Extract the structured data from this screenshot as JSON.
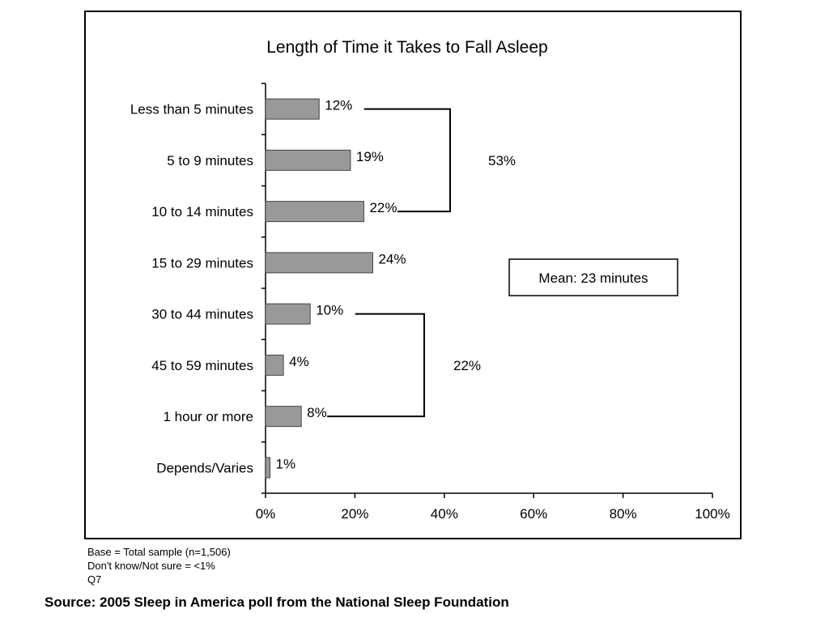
{
  "chart_data": {
    "type": "bar",
    "orientation": "horizontal",
    "title": "Length of Time it Takes to Fall Asleep",
    "categories": [
      "Less than 5 minutes",
      "5 to 9 minutes",
      "10 to 14 minutes",
      "15 to 29 minutes",
      "30 to 44 minutes",
      "45 to 59 minutes",
      "1 hour or more",
      "Depends/Varies"
    ],
    "values": [
      12,
      19,
      22,
      24,
      10,
      4,
      8,
      1
    ],
    "value_labels": [
      "12%",
      "19%",
      "22%",
      "24%",
      "10%",
      "4%",
      "8%",
      "1%"
    ],
    "xlim": [
      0,
      100
    ],
    "x_ticks": [
      0,
      20,
      40,
      60,
      80,
      100
    ],
    "x_tick_labels": [
      "0%",
      "20%",
      "40%",
      "60%",
      "80%",
      "100%"
    ],
    "grid": false,
    "bar_color": "#999999",
    "brackets": [
      {
        "from": 0,
        "to": 2,
        "label": "53%"
      },
      {
        "from": 4,
        "to": 6,
        "label": "22%"
      }
    ],
    "annotation": "Mean: 23 minutes"
  },
  "notes": {
    "base": "Base = Total sample (n=1,506)",
    "dont_know": "Don't know/Not sure = <1%",
    "question": "Q7"
  },
  "source": "Source: 2005 Sleep in America poll from the National Sleep Foundation"
}
